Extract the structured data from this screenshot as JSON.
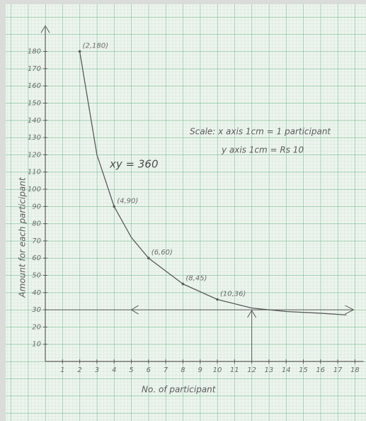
{
  "chart_data": {
    "type": "line",
    "equation": "xy = 360",
    "scale_lines": [
      "Scale: x axis 1cm = 1 participant",
      "y axis 1cm = Rs 10"
    ],
    "x_label": "No. of participant",
    "y_label": "Amount for each participant",
    "x": [
      2,
      3,
      4,
      5,
      6,
      8,
      10,
      12,
      14,
      16,
      17.5
    ],
    "series": [
      {
        "name": "xy = 360",
        "color": "#5a5a5a",
        "values": [
          180,
          120,
          90,
          72,
          60,
          45,
          36,
          31,
          29,
          28,
          27
        ],
        "value_labels": [
          "(2,180)",
          null,
          "(4,90)",
          null,
          "(6,60)",
          "(8,45)",
          "(10,36)",
          null,
          null,
          null,
          null
        ]
      }
    ],
    "hlines": [
      30
    ],
    "vlines": [
      12
    ],
    "xlim": [
      0,
      18.5
    ],
    "ylim": [
      0,
      190
    ],
    "xticks": [
      1,
      2,
      3,
      4,
      5,
      6,
      7,
      8,
      9,
      10,
      11,
      12,
      13,
      14,
      15,
      16,
      17,
      18
    ],
    "yticks": [
      10,
      20,
      30,
      40,
      50,
      60,
      70,
      80,
      90,
      100,
      110,
      120,
      130,
      140,
      150,
      160,
      170,
      180
    ],
    "grid": true
  }
}
